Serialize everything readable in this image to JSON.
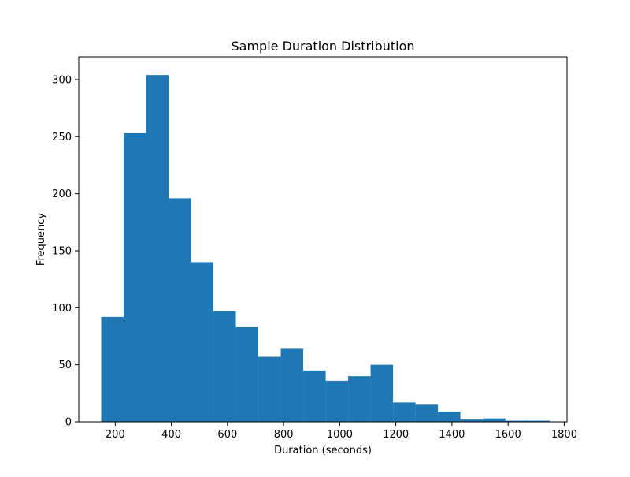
{
  "chart_data": {
    "type": "bar",
    "title": "Sample Duration Distribution",
    "xlabel": "Duration (seconds)",
    "ylabel": "Frequency",
    "xlim": [
      70,
      1810
    ],
    "ylim": [
      0,
      320
    ],
    "xticks": [
      200,
      400,
      600,
      800,
      1000,
      1200,
      1400,
      1600,
      1800
    ],
    "yticks": [
      0,
      50,
      100,
      150,
      200,
      250,
      300
    ],
    "bar_color": "#1f77b4",
    "grid": false,
    "bins": [
      {
        "x0": 150,
        "x1": 230,
        "value": 92
      },
      {
        "x0": 230,
        "x1": 310,
        "value": 253
      },
      {
        "x0": 310,
        "x1": 390,
        "value": 304
      },
      {
        "x0": 390,
        "x1": 470,
        "value": 196
      },
      {
        "x0": 470,
        "x1": 550,
        "value": 140
      },
      {
        "x0": 550,
        "x1": 630,
        "value": 97
      },
      {
        "x0": 630,
        "x1": 710,
        "value": 83
      },
      {
        "x0": 710,
        "x1": 790,
        "value": 57
      },
      {
        "x0": 790,
        "x1": 870,
        "value": 64
      },
      {
        "x0": 870,
        "x1": 950,
        "value": 45
      },
      {
        "x0": 950,
        "x1": 1030,
        "value": 36
      },
      {
        "x0": 1030,
        "x1": 1110,
        "value": 40
      },
      {
        "x0": 1110,
        "x1": 1190,
        "value": 50
      },
      {
        "x0": 1190,
        "x1": 1270,
        "value": 17
      },
      {
        "x0": 1270,
        "x1": 1350,
        "value": 15
      },
      {
        "x0": 1350,
        "x1": 1430,
        "value": 9
      },
      {
        "x0": 1430,
        "x1": 1510,
        "value": 2
      },
      {
        "x0": 1510,
        "x1": 1590,
        "value": 3
      },
      {
        "x0": 1590,
        "x1": 1670,
        "value": 1
      },
      {
        "x0": 1670,
        "x1": 1750,
        "value": 1
      }
    ]
  }
}
